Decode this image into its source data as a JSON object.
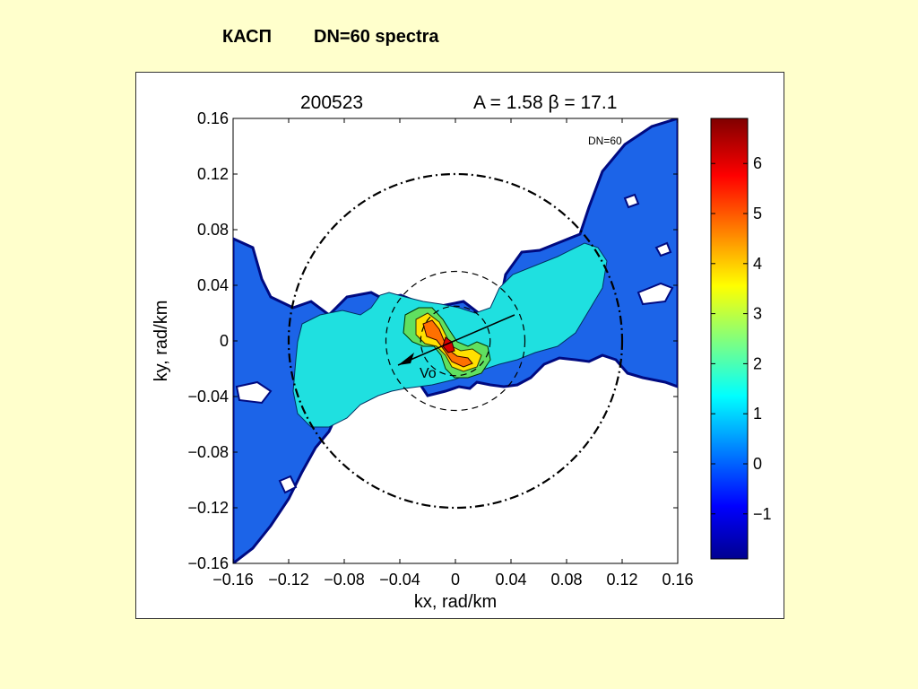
{
  "slide": {
    "title_left": "КАСП",
    "title_right": "DN=60 spectra"
  },
  "chart_data": {
    "type": "heatmap",
    "title_id": "200523",
    "title_params": "A = 1.58  β = 17.1",
    "annotation": "DN=60",
    "vector_label": "Vo",
    "xlabel": "kx, rad/km",
    "ylabel": "ky, rad/km",
    "xlim": [
      -0.16,
      0.16
    ],
    "ylim": [
      -0.16,
      0.16
    ],
    "xticks": [
      "−0.16",
      "−0.12",
      "−0.08",
      "−0.04",
      "0",
      "0.04",
      "0.08",
      "0.12",
      "0.16"
    ],
    "yticks": [
      "0.16",
      "0.12",
      "0.08",
      "0.04",
      "0",
      "−0.04",
      "−0.08",
      "−0.12",
      "−0.16"
    ],
    "circles_radius": [
      0.12,
      0.05,
      0.025
    ],
    "colorbar": {
      "range": [
        -1.9,
        6.9
      ],
      "ticks": [
        "6",
        "5",
        "4",
        "3",
        "2",
        "1",
        "0",
        "−1"
      ],
      "tick_values": [
        6,
        5,
        4,
        3,
        2,
        1,
        0,
        -1
      ]
    }
  }
}
